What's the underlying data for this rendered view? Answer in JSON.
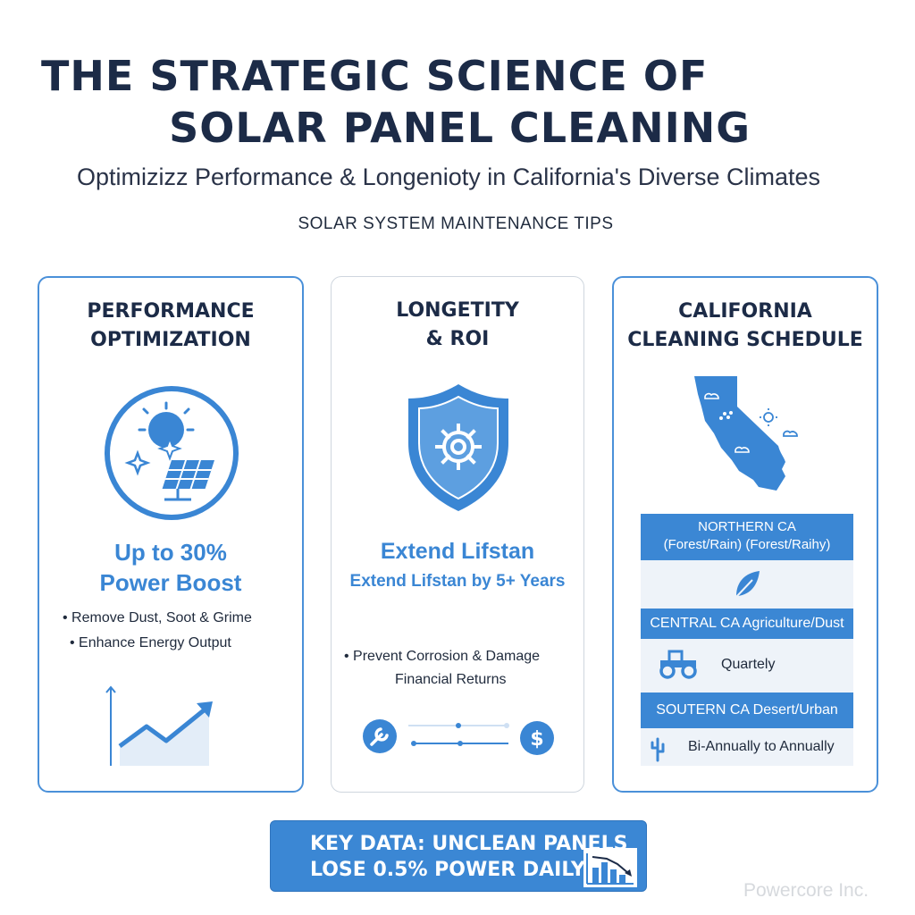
{
  "header": {
    "title_line1": "THE STRATEGIC SCIENCE OF",
    "title_line2": "SOLAR PANEL CLEANING",
    "subtitle": "Optimizizz Performance & Longenioty in California's Diverse Climates",
    "tagline": "SOLAR SYSTEM MAINTENANCE TIPS"
  },
  "cards": {
    "performance": {
      "title_line1": "PERFORMANCE",
      "title_line2": "OPTIMIZATION",
      "icon": "sun-solar-panel-icon",
      "highlight_line1": "Up to 30%",
      "highlight_line2": "Power Boost",
      "bullet1": "• Remove Dust, Soot & Grime",
      "bullet2": "• Enhance Energy Output",
      "chart_icon": "trending-up-chart-icon"
    },
    "longevity": {
      "title_line1": "LONGETITY",
      "title_line2": "& ROI",
      "icon": "shield-gear-icon",
      "highlight": "Extend Lifstan",
      "highlight_sub": "Extend Lifstan by 5+ Years",
      "bullet1": "• Prevent Corrosion & Damage",
      "bullet2": "Financial Returns",
      "tool_icon": "wrench-icon",
      "money_icon": "dollar-icon"
    },
    "california": {
      "title_line1": "CALIFORNIA",
      "title_line2": "CLEANING SCHEDULE",
      "map_icon": "california-map-icon",
      "northern_line1": "NORTHERN CA",
      "northern_line2": "(Forest/Rain) (Forest/Raihy)",
      "northern_icon": "leaf-icon",
      "central_label": "CENTRAL CA Agriculture/Dust",
      "central_frequency": "Quartely",
      "central_icon": "tractor-icon",
      "southern_label": "SOUTERN CA Desert/Urban",
      "southern_frequency": "Bi-Annually to Annually",
      "southern_icon": "cactus-icon"
    }
  },
  "key_data": {
    "line1": "KEY DATA: UNCLEAN PANELS",
    "line2": "LOSE 0.5% POWER DAILY",
    "icon": "declining-bar-chart-icon"
  },
  "watermark": "Powercore Inc.",
  "colors": {
    "accent_blue": "#3b87d4",
    "title_navy": "#1c2b47",
    "light_blue_fill": "#e3edf8"
  }
}
